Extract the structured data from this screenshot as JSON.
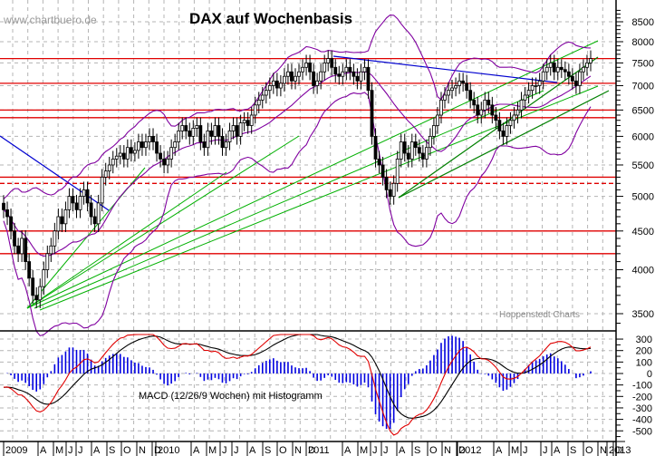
{
  "header": {
    "title": "DAX auf Wochenbasis",
    "watermark": "www.chartbuero.de",
    "source": "Hoppenstedt Charts",
    "macd_label": "MACD (12/26/9 Wochen) mit Histogramm"
  },
  "colors": {
    "grid": "#b4b4b4",
    "support_resistance": "#e00000",
    "bollinger": "#8000a0",
    "trend_green": "#00b000",
    "trend_blue": "#0000d0",
    "macd_line": "#e00000",
    "signal_line": "#000000",
    "histogram": "#0000e0",
    "candle": "#000000"
  },
  "chart_data": [
    {
      "type": "candlestick",
      "title": "DAX auf Wochenbasis",
      "xlabel": "",
      "ylabel": "",
      "y_scale": "log",
      "ylim": [
        3300,
        8800
      ],
      "y_ticks": [
        3500,
        4000,
        4500,
        5000,
        5500,
        6000,
        6500,
        7000,
        7500,
        8000,
        8500
      ],
      "x_tick_labels": [
        "2009",
        "A",
        "M",
        "J",
        "J",
        "A",
        "S",
        "O",
        "N",
        "D",
        "2010",
        "A",
        "M",
        "J",
        "J",
        "A",
        "S",
        "O",
        "N",
        "D",
        "2011",
        "A",
        "M",
        "J",
        "J",
        "A",
        "S",
        "O",
        "N",
        "D",
        "2012",
        "A",
        "M",
        "J",
        "J",
        "A",
        "S",
        "O",
        "N",
        "D",
        "2013"
      ],
      "horizontal_lines": [
        {
          "value": 7600,
          "style": "solid"
        },
        {
          "value": 7050,
          "style": "solid"
        },
        {
          "value": 6500,
          "style": "solid"
        },
        {
          "value": 6350,
          "style": "solid"
        },
        {
          "value": 5300,
          "style": "solid"
        },
        {
          "value": 5200,
          "style": "dashed"
        },
        {
          "value": 4500,
          "style": "solid"
        },
        {
          "value": 4200,
          "style": "solid"
        }
      ],
      "weekly_close_approx": {
        "x_start": "2009-01",
        "values": [
          4800,
          4700,
          4500,
          4300,
          4200,
          4400,
          4100,
          3900,
          3700,
          3650,
          3800,
          4000,
          4200,
          4300,
          4500,
          4700,
          4600,
          4800,
          5000,
          4900,
          4800,
          5000,
          5100,
          4900,
          4700,
          4600,
          4900,
          5300,
          5400,
          5500,
          5600,
          5650,
          5700,
          5600,
          5800,
          5700,
          5750,
          5900,
          5800,
          5900,
          6000,
          5900,
          5700,
          5600,
          5500,
          5600,
          5800,
          5900,
          6100,
          6200,
          6100,
          6000,
          6150,
          6200,
          5900,
          5800,
          6100,
          6000,
          6200,
          6000,
          5800,
          5900,
          6100,
          6200,
          6000,
          6250,
          6300,
          6200,
          6400,
          6600,
          6700,
          6800,
          6900,
          7000,
          7100,
          6950,
          7050,
          7200,
          7300,
          7100,
          7200,
          7300,
          7400,
          7500,
          7300,
          7000,
          7100,
          7300,
          7500,
          7600,
          7400,
          7250,
          7200,
          7300,
          7400,
          7300,
          7200,
          7100,
          7300,
          7400,
          6900,
          6000,
          5600,
          5500,
          5300,
          5100,
          5000,
          5200,
          5600,
          5900,
          5700,
          5600,
          5900,
          5800,
          5700,
          5600,
          5800,
          6000,
          6200,
          6400,
          6700,
          6800,
          6900,
          6950,
          7000,
          7100,
          7050,
          6900,
          6700,
          6600,
          6400,
          6500,
          6700,
          6600,
          6400,
          6300,
          6100,
          6000,
          6200,
          6300,
          6400,
          6500,
          6700,
          6800,
          6900,
          7000,
          7000,
          7100,
          7300,
          7400,
          7500,
          7300,
          7400,
          7350,
          7300,
          7200,
          7100,
          7000,
          7300,
          7400,
          7500,
          7600
        ]
      }
    },
    {
      "type": "line",
      "title": "MACD (12/26/9 Wochen) mit Histogramm",
      "ylim": [
        -560,
        330
      ],
      "y_ticks": [
        300,
        200,
        100,
        0,
        -100,
        -200,
        -300,
        -400,
        -500
      ],
      "series": [
        {
          "name": "MACD",
          "color": "#e00000"
        },
        {
          "name": "Signal",
          "color": "#000000"
        },
        {
          "name": "Histogramm",
          "color": "#0000e0"
        }
      ]
    }
  ],
  "y_axis": {
    "price_labels": [
      "8500",
      "8000",
      "7500",
      "7000",
      "6500",
      "6000",
      "5500",
      "5000",
      "4500",
      "4000",
      "3500"
    ],
    "macd_labels": [
      "300",
      "200",
      "100",
      "0",
      "-100",
      "-200",
      "-300",
      "-400",
      "-500"
    ]
  },
  "x_axis": {
    "labels": [
      "2009",
      "A",
      "M",
      "J",
      "J",
      "A",
      "S",
      "O",
      "N",
      "D",
      "2010",
      "A",
      "M",
      "J",
      "J",
      "A",
      "S",
      "O",
      "N",
      "D",
      "2011",
      "A",
      "M",
      "J",
      "J",
      "A",
      "S",
      "O",
      "N",
      "D",
      "2012",
      "A",
      "M",
      "J",
      "J",
      "A",
      "S",
      "O",
      "N",
      "D",
      "2013"
    ]
  }
}
